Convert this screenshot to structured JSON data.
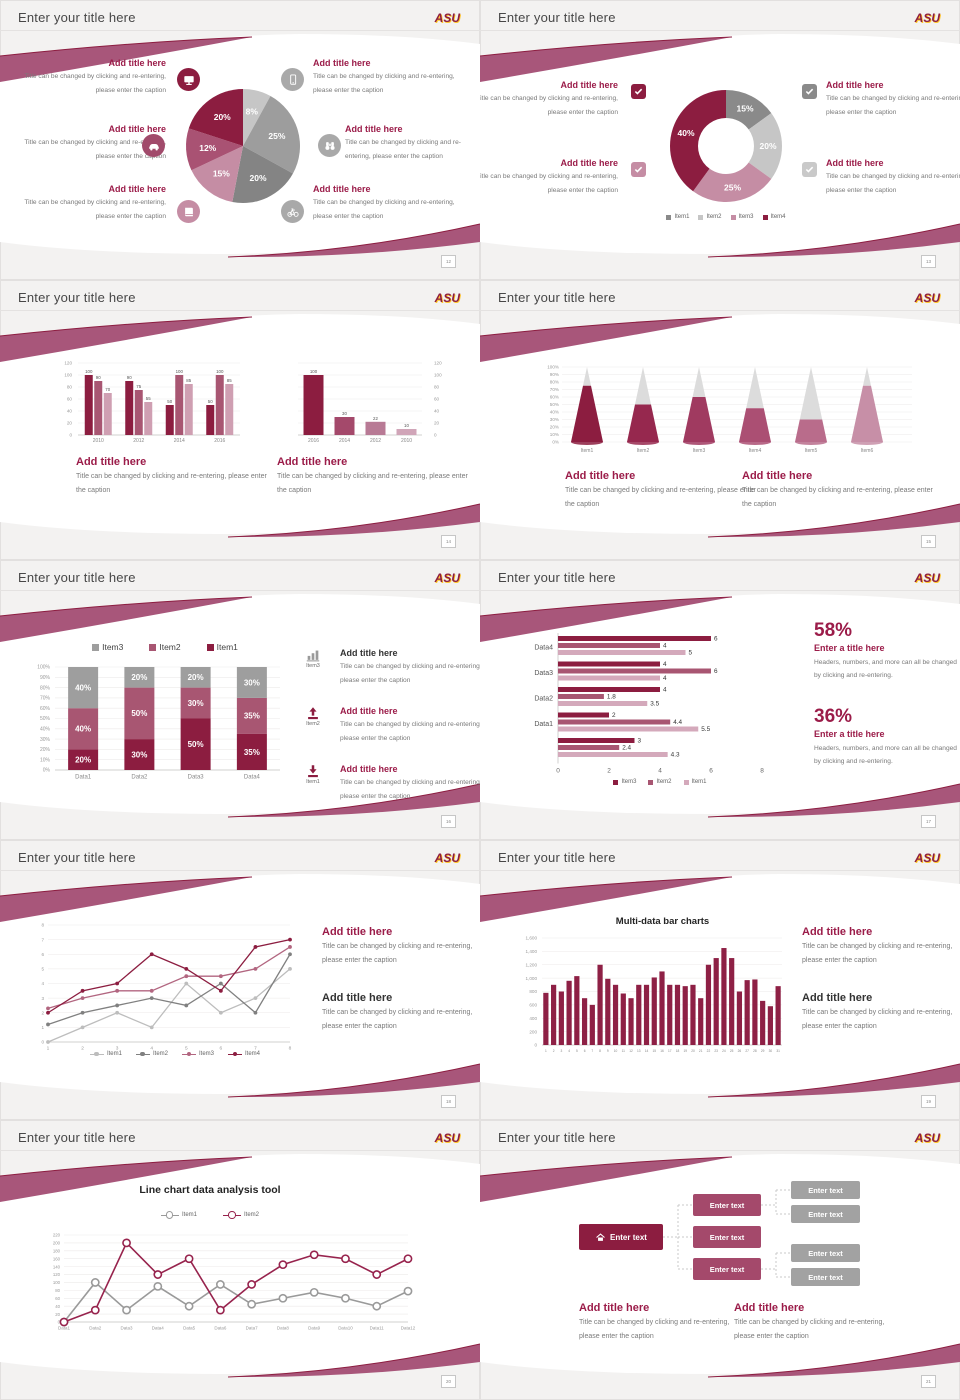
{
  "brand": {
    "logo": "ASU",
    "maroon": "#8C1D40",
    "gold": "#FFC627"
  },
  "common": {
    "slide_title": "Enter your title here"
  },
  "slides": [
    {
      "page": "12",
      "callouts": [
        {
          "title": "Add title here",
          "caption": "Title can be changed by clicking and re-entering, please enter the caption"
        },
        {
          "title": "Add title here",
          "caption": "Title can be changed by clicking and re-entering, please enter the caption"
        },
        {
          "title": "Add title here",
          "caption": "Title can be changed by clicking and re-entering, please enter the caption"
        },
        {
          "title": "Add title here",
          "caption": "Title can be changed by clicking and re-entering, please enter the caption"
        },
        {
          "title": "Add title here",
          "caption": "Title can be changed by clicking and re-entering, please enter the caption"
        },
        {
          "title": "Add title here",
          "caption": "Title can be changed by clicking and re-entering, please enter the caption"
        }
      ]
    },
    {
      "page": "13",
      "callouts": [
        {
          "title": "Add title here",
          "caption": "Title can be changed by clicking and re-entering, please enter the caption"
        },
        {
          "title": "Add title here",
          "caption": "Title can be changed by clicking and re-entering, please enter the caption"
        },
        {
          "title": "Add title here",
          "caption": "Title can be changed by clicking and re-entering, please enter the caption"
        },
        {
          "title": "Add title here",
          "caption": "Title can be changed by clicking and re-entering, please enter the caption"
        }
      ]
    },
    {
      "page": "14",
      "callouts": [
        {
          "title": "Add title here",
          "caption": "Title can be changed by clicking and re-entering, please enter the caption"
        },
        {
          "title": "Add title here",
          "caption": "Title can be changed by clicking and re-entering, please enter the caption"
        }
      ]
    },
    {
      "page": "15",
      "callouts": [
        {
          "title": "Add title here",
          "caption": "Title can be changed by clicking and re-entering, please enter the caption"
        },
        {
          "title": "Add title here",
          "caption": "Title can be changed by clicking and re-entering, please enter the caption"
        }
      ]
    },
    {
      "page": "16",
      "callouts": [
        {
          "title": "Add title here",
          "caption": "Title can be changed by clicking and re-entering, please enter the caption",
          "icon_label": "Item3"
        },
        {
          "title": "Add title here",
          "caption": "Title can be changed by clicking and re-entering, please enter the caption",
          "icon_label": "Item2"
        },
        {
          "title": "Add title here",
          "caption": "Title can be changed by clicking and re-entering, please enter the caption",
          "icon_label": "Item1"
        }
      ]
    },
    {
      "page": "17",
      "stats": [
        {
          "pct": "58%",
          "title": "Enter a title here",
          "caption": "Headers, numbers, and more can all be changed by clicking and re-entering."
        },
        {
          "pct": "36%",
          "title": "Enter a title here",
          "caption": "Headers, numbers, and more can all be changed by clicking and re-entering."
        }
      ]
    },
    {
      "page": "18",
      "callouts": [
        {
          "title": "Add title here",
          "caption": "Title can be changed by clicking and re-entering, please enter the caption"
        },
        {
          "title": "Add title here",
          "caption": "Title can be changed by clicking and re-entering, please enter the caption"
        }
      ]
    },
    {
      "page": "19",
      "callouts": [
        {
          "title": "Add title here",
          "caption": "Title can be changed by clicking and re-entering, please enter the caption"
        },
        {
          "title": "Add title here",
          "caption": "Title can be changed by clicking and re-entering, please enter the caption"
        }
      ]
    },
    {
      "page": "20"
    },
    {
      "page": "21",
      "tree": {
        "root": "Enter text",
        "mids": [
          "Enter text",
          "Enter text",
          "Enter text"
        ],
        "leaves": [
          "Enter text",
          "Enter text",
          "Enter text",
          "Enter text"
        ]
      },
      "callouts": [
        {
          "title": "Add title here",
          "caption": "Title can be changed by clicking and re-entering, please enter the caption"
        },
        {
          "title": "Add title here",
          "caption": "Title can be changed by clicking and re-entering, please enter the caption"
        }
      ]
    }
  ],
  "chart_data": [
    {
      "id": "pie12",
      "type": "pie",
      "values": [
        8,
        25,
        20,
        15,
        12,
        20
      ],
      "labels": [
        "8%",
        "25%",
        "20%",
        "15%",
        "12%",
        "20%"
      ],
      "colors": [
        "#c6c6c6",
        "#9d9d9d",
        "#848484",
        "#c58da4",
        "#a95273",
        "#8C1D40"
      ]
    },
    {
      "id": "donut13",
      "type": "pie",
      "donut": true,
      "values": [
        15,
        20,
        25,
        40
      ],
      "labels": [
        "15%",
        "20%",
        "25%",
        "40%"
      ],
      "colors": [
        "#8a8a8a",
        "#c6c6c6",
        "#c58da4",
        "#8C1D40"
      ],
      "legend": [
        {
          "label": "Item1",
          "color": "#8a8a8a"
        },
        {
          "label": "Item2",
          "color": "#c6c6c6"
        },
        {
          "label": "Item3",
          "color": "#c58da4"
        },
        {
          "label": "Item4",
          "color": "#8C1D40"
        }
      ]
    },
    {
      "id": "bars14a",
      "type": "bar",
      "categories": [
        "2010",
        "2012",
        "2014",
        "2016"
      ],
      "series": [
        {
          "color": "#8C1D40",
          "values": [
            100,
            90,
            50,
            50
          ]
        },
        {
          "color": "#a85672",
          "values": [
            90,
            75,
            100,
            100
          ]
        },
        {
          "color": "#cf9fb2",
          "values": [
            70,
            55,
            85,
            85
          ]
        }
      ],
      "ylim": [
        0,
        120
      ],
      "ystep": 20,
      "show_labels": true
    },
    {
      "id": "bars14b",
      "type": "bar",
      "categories": [
        "2016",
        "2014",
        "2012",
        "2010"
      ],
      "series": [
        {
          "colors": [
            "#8C1D40",
            "#a4496b",
            "#b87a95",
            "#d0a5b8"
          ],
          "values": [
            100,
            30,
            22,
            10
          ]
        }
      ],
      "ylim": [
        0,
        120
      ],
      "ystep": 20,
      "yside": "right",
      "show_labels": true
    },
    {
      "id": "cones15",
      "type": "cone",
      "categories": [
        "Item1",
        "Item2",
        "Item3",
        "Item4",
        "Item5",
        "Item6"
      ],
      "values": [
        75,
        50,
        60,
        45,
        30,
        75
      ],
      "colors": [
        "#8C1D40",
        "#96284e",
        "#a03a60",
        "#ab4f73",
        "#b96c8b",
        "#c78fa7"
      ],
      "ylim": [
        0,
        100
      ],
      "ystep": 10
    },
    {
      "id": "stack16",
      "type": "stacked",
      "categories": [
        "Data1",
        "Data2",
        "Data3",
        "Data4"
      ],
      "series": [
        {
          "name": "Item1",
          "color": "#8C1D40",
          "values": [
            20,
            30,
            50,
            35
          ]
        },
        {
          "name": "Item2",
          "color": "#a85672",
          "values": [
            40,
            50,
            30,
            35
          ]
        },
        {
          "name": "Item3",
          "color": "#9e9e9e",
          "values": [
            40,
            20,
            20,
            30
          ]
        }
      ],
      "ylim": [
        0,
        100
      ],
      "ystep": 10,
      "legend": [
        {
          "label": "Item3",
          "color": "#9e9e9e"
        },
        {
          "label": "Item2",
          "color": "#a85672"
        },
        {
          "label": "Item1",
          "color": "#8C1D40"
        }
      ]
    },
    {
      "id": "hbar17",
      "type": "hbar",
      "categories": [
        "Data4",
        "Data3",
        "Data2",
        "Data1",
        ""
      ],
      "series": [
        {
          "name": "Item3",
          "color": "#8C1D40",
          "values": [
            6,
            4,
            4,
            2,
            3
          ]
        },
        {
          "name": "Item2",
          "color": "#a85672",
          "values": [
            4,
            6,
            1.8,
            4.4,
            2.4
          ]
        },
        {
          "name": "Item1",
          "color": "#d4a9bb",
          "values": [
            5,
            4,
            3.5,
            5.5,
            4.3
          ]
        }
      ],
      "xlim": [
        0,
        8
      ],
      "xstep": 2,
      "legend": [
        {
          "label": "Item3",
          "color": "#8C1D40"
        },
        {
          "label": "Item2",
          "color": "#a85672"
        },
        {
          "label": "Item1",
          "color": "#d4a9bb"
        }
      ]
    },
    {
      "id": "line18",
      "type": "line",
      "x": [
        "1",
        "2",
        "3",
        "4",
        "5",
        "6",
        "7",
        "8"
      ],
      "series": [
        {
          "name": "Item1",
          "color": "#bdbdbd",
          "values": [
            0,
            1,
            2,
            1,
            4,
            2,
            3,
            5
          ]
        },
        {
          "name": "Item2",
          "color": "#808080",
          "values": [
            1.2,
            2,
            2.5,
            3,
            2.5,
            4,
            2,
            6
          ]
        },
        {
          "name": "Item3",
          "color": "#b26680",
          "values": [
            2.3,
            3,
            3.5,
            3.5,
            4.5,
            4.5,
            5,
            6.5
          ]
        },
        {
          "name": "Item4",
          "color": "#8C1D40",
          "values": [
            2,
            3.5,
            4,
            6,
            5,
            3.5,
            6.5,
            7
          ]
        }
      ],
      "ylim": [
        0,
        8
      ],
      "ystep": 1,
      "legend": [
        {
          "label": "Item1",
          "color": "#bdbdbd"
        },
        {
          "label": "Item2",
          "color": "#808080"
        },
        {
          "label": "Item3",
          "color": "#b26680"
        },
        {
          "label": "Item4",
          "color": "#8C1D40"
        }
      ]
    },
    {
      "id": "mbar19",
      "type": "bar",
      "title": "Multi-data bar charts",
      "categories": [
        "1",
        "2",
        "3",
        "4",
        "5",
        "6",
        "7",
        "8",
        "9",
        "10",
        "11",
        "12",
        "13",
        "14",
        "15",
        "16",
        "17",
        "18",
        "19",
        "20",
        "21",
        "22",
        "23",
        "24",
        "25",
        "26",
        "27",
        "28",
        "29",
        "30",
        "31"
      ],
      "series": [
        {
          "color": "#8e2045",
          "values": [
            780,
            900,
            800,
            960,
            1030,
            700,
            600,
            1200,
            990,
            900,
            770,
            700,
            900,
            900,
            1010,
            1100,
            900,
            900,
            880,
            900,
            700,
            1200,
            1300,
            1450,
            1300,
            800,
            970,
            980,
            660,
            580,
            880
          ]
        }
      ],
      "ylim": [
        0,
        1600
      ],
      "ystep": 200,
      "yticklabels": [
        "0",
        "200",
        "400",
        "600",
        "800",
        "1,000",
        "1,200",
        "1,400",
        "1,600"
      ]
    },
    {
      "id": "line20",
      "type": "line",
      "title": "Line chart data analysis tool",
      "x": [
        "Data1",
        "Data2",
        "Data3",
        "Data4",
        "Data5",
        "Data6",
        "Data7",
        "Data8",
        "Data9",
        "Data10",
        "Data11",
        "Data12"
      ],
      "series": [
        {
          "name": "Item1",
          "color": "#9a9a9a",
          "values": [
            0,
            100,
            30,
            90,
            40,
            95,
            45,
            60,
            75,
            60,
            40,
            78
          ],
          "marker": "ring"
        },
        {
          "name": "Item2",
          "color": "#97234d",
          "values": [
            0,
            30,
            200,
            120,
            160,
            30,
            95,
            145,
            170,
            160,
            120,
            160
          ],
          "marker": "ring"
        }
      ],
      "ylim": [
        0,
        220
      ],
      "ystep": 20,
      "legend": [
        {
          "label": "Item1",
          "color": "#9a9a9a"
        },
        {
          "label": "Item2",
          "color": "#97234d"
        }
      ]
    }
  ]
}
